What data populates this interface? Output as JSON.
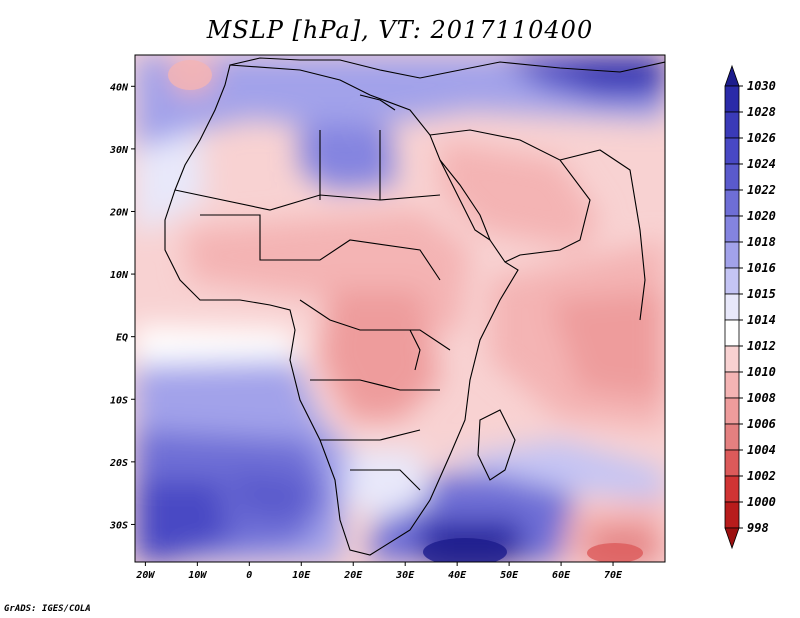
{
  "title": "MSLP [hPa], VT: 2017110400",
  "credit": "GrADS: IGES/COLA",
  "map": {
    "lon_range": [
      -22,
      80
    ],
    "lat_range": [
      -36,
      45
    ],
    "lon_ticks": [
      {
        "value": -20,
        "label": "20W"
      },
      {
        "value": -10,
        "label": "10W"
      },
      {
        "value": 0,
        "label": "0"
      },
      {
        "value": 10,
        "label": "10E"
      },
      {
        "value": 20,
        "label": "20E"
      },
      {
        "value": 30,
        "label": "30E"
      },
      {
        "value": 40,
        "label": "40E"
      },
      {
        "value": 50,
        "label": "50E"
      },
      {
        "value": 60,
        "label": "60E"
      },
      {
        "value": 70,
        "label": "70E"
      }
    ],
    "lat_ticks": [
      {
        "value": 40,
        "label": "40N"
      },
      {
        "value": 30,
        "label": "30N"
      },
      {
        "value": 20,
        "label": "20N"
      },
      {
        "value": 10,
        "label": "10N"
      },
      {
        "value": 0,
        "label": "EQ"
      },
      {
        "value": -10,
        "label": "10S"
      },
      {
        "value": -20,
        "label": "20S"
      },
      {
        "value": -30,
        "label": "30S"
      }
    ]
  },
  "colorbar": {
    "levels": [
      "1030",
      "1028",
      "1026",
      "1024",
      "1022",
      "1020",
      "1018",
      "1016",
      "1015",
      "1014",
      "1012",
      "1010",
      "1008",
      "1006",
      "1004",
      "1002",
      "1000",
      "998"
    ],
    "colors": [
      "#1c1c8c",
      "#2a2aa8",
      "#3a3ab8",
      "#4848c4",
      "#5a5acc",
      "#6e6ed6",
      "#8484e0",
      "#a2a2ea",
      "#c4c4f4",
      "#e8e8fa",
      "#ffffff",
      "#f8d2d2",
      "#f4b4b4",
      "#ee9c9c",
      "#e48080",
      "#dc5a5a",
      "#d03434",
      "#b81c1c",
      "#9c1010"
    ]
  }
}
